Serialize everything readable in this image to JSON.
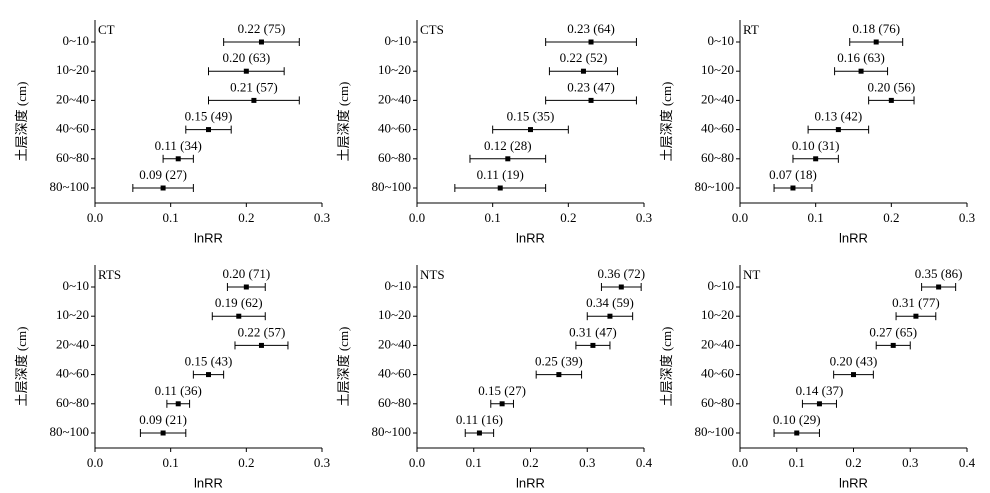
{
  "chart_data": [
    {
      "type": "forest",
      "title": "CT",
      "x_label": "lnRR",
      "y_label": "土层深度 (cm)",
      "categories": [
        "0~10",
        "10~20",
        "20~40",
        "40~60",
        "60~80",
        "80~100"
      ],
      "values": [
        0.22,
        0.2,
        0.21,
        0.15,
        0.11,
        0.09
      ],
      "errors": [
        0.05,
        0.05,
        0.06,
        0.03,
        0.02,
        0.04
      ],
      "value_labels": [
        "0.22 (75)",
        "0.20 (63)",
        "0.21 (57)",
        "0.15 (49)",
        "0.11 (34)",
        "0.09 (27)"
      ],
      "xlim": [
        0,
        0.3
      ],
      "xticks": [
        {
          "value": 0,
          "label": "0.0"
        },
        0.1,
        0.2,
        0.3
      ],
      "color": "#000000"
    },
    {
      "type": "forest",
      "title": "CTS",
      "x_label": "lnRR",
      "y_label": "土层深度 (cm)",
      "categories": [
        "0~10",
        "10~20",
        "20~40",
        "40~60",
        "60~80",
        "80~100"
      ],
      "values": [
        0.23,
        0.22,
        0.23,
        0.15,
        0.12,
        0.11
      ],
      "errors": [
        0.06,
        0.045,
        0.06,
        0.05,
        0.05,
        0.06
      ],
      "value_labels": [
        "0.23 (64)",
        "0.22 (52)",
        "0.23 (47)",
        "0.15 (35)",
        "0.12 (28)",
        "0.11 (19)"
      ],
      "xlim": [
        0,
        0.3
      ],
      "xticks": [
        {
          "value": 0,
          "label": "0.0"
        },
        0.1,
        0.2,
        0.3
      ],
      "color": "#000000"
    },
    {
      "type": "forest",
      "title": "RT",
      "x_label": "lnRR",
      "y_label": "土层深度 (cm)",
      "categories": [
        "0~10",
        "10~20",
        "20~40",
        "40~60",
        "60~80",
        "80~100"
      ],
      "values": [
        0.18,
        0.16,
        0.2,
        0.13,
        0.1,
        0.07
      ],
      "errors": [
        0.035,
        0.035,
        0.03,
        0.04,
        0.03,
        0.025
      ],
      "value_labels": [
        "0.18 (76)",
        "0.16 (63)",
        "0.20 (56)",
        "0.13 (42)",
        "0.10 (31)",
        "0.07 (18)"
      ],
      "xlim": [
        0,
        0.3
      ],
      "xticks": [
        {
          "value": 0,
          "label": "0.0"
        },
        0.1,
        0.2,
        0.3
      ],
      "color": "#000000"
    },
    {
      "type": "forest",
      "title": "RTS",
      "x_label": "lnRR",
      "y_label": "土层深度 (cm)",
      "categories": [
        "0~10",
        "10~20",
        "20~40",
        "40~60",
        "60~80",
        "80~100"
      ],
      "values": [
        0.2,
        0.19,
        0.22,
        0.15,
        0.11,
        0.09
      ],
      "errors": [
        0.025,
        0.035,
        0.035,
        0.02,
        0.015,
        0.03
      ],
      "value_labels": [
        "0.20 (71)",
        "0.19 (62)",
        "0.22 (57)",
        "0.15 (43)",
        "0.11 (36)",
        "0.09 (21)"
      ],
      "xlim": [
        0,
        0.3
      ],
      "xticks": [
        {
          "value": 0,
          "label": "0.0"
        },
        0.1,
        0.2,
        0.3
      ],
      "color": "#000000"
    },
    {
      "type": "forest",
      "title": "NTS",
      "x_label": "lnRR",
      "y_label": "土层深度 (cm)",
      "categories": [
        "0~10",
        "10~20",
        "20~40",
        "40~60",
        "60~80",
        "80~100"
      ],
      "values": [
        0.36,
        0.34,
        0.31,
        0.25,
        0.15,
        0.11
      ],
      "errors": [
        0.035,
        0.04,
        0.03,
        0.04,
        0.02,
        0.025
      ],
      "value_labels": [
        "0.36 (72)",
        "0.34 (59)",
        "0.31 (47)",
        "0.25 (39)",
        "0.15 (27)",
        "0.11 (16)"
      ],
      "xlim": [
        0,
        0.4
      ],
      "xticks": [
        {
          "value": 0,
          "label": "0.0"
        },
        0.1,
        0.2,
        0.3,
        0.4
      ],
      "color": "#000000"
    },
    {
      "type": "forest",
      "title": "NT",
      "x_label": "lnRR",
      "y_label": "土层深度 (cm)",
      "categories": [
        "0~10",
        "10~20",
        "20~40",
        "40~60",
        "60~80",
        "80~100"
      ],
      "values": [
        0.35,
        0.31,
        0.27,
        0.2,
        0.14,
        0.1
      ],
      "errors": [
        0.03,
        0.035,
        0.03,
        0.035,
        0.03,
        0.04
      ],
      "value_labels": [
        "0.35 (86)",
        "0.31 (77)",
        "0.27 (65)",
        "0.20 (43)",
        "0.14 (37)",
        "0.10 (29)"
      ],
      "xlim": [
        0,
        0.4
      ],
      "xticks": [
        {
          "value": 0,
          "label": "0.0"
        },
        0.1,
        0.2,
        0.3,
        0.4
      ],
      "color": "#000000"
    }
  ]
}
